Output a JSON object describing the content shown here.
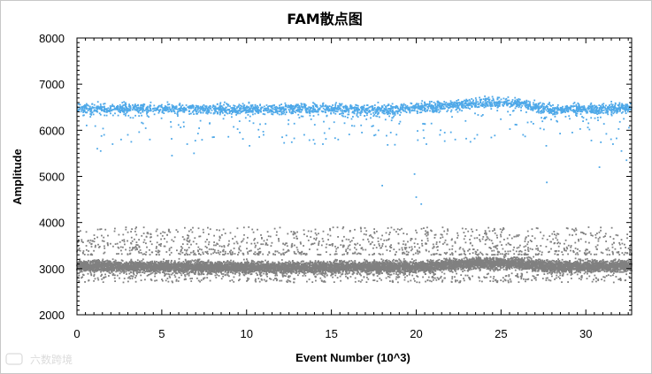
{
  "chart_data": {
    "type": "scatter",
    "title": "FAM散点图",
    "xlabel": "Event Number (10^3)",
    "ylabel": "Amplitude",
    "xlim": [
      0,
      32.7
    ],
    "ylim": [
      2000,
      8000
    ],
    "x_ticks": [
      0,
      5,
      10,
      15,
      20,
      25,
      30
    ],
    "y_ticks": [
      2000,
      3000,
      4000,
      5000,
      6000,
      7000,
      8000
    ],
    "grid": false,
    "legend": "none",
    "series": [
      {
        "color": "#4ea8e8",
        "band_center": [
          [
            0,
            6480
          ],
          [
            3,
            6470
          ],
          [
            7,
            6460
          ],
          [
            10,
            6450
          ],
          [
            14,
            6470
          ],
          [
            18,
            6440
          ],
          [
            21,
            6500
          ],
          [
            24,
            6600
          ],
          [
            26,
            6580
          ],
          [
            28,
            6440
          ],
          [
            32.7,
            6480
          ]
        ],
        "band_halfwidth": 110,
        "outliers": [
          [
            1.2,
            5600
          ],
          [
            1.4,
            5550
          ],
          [
            1.6,
            5900
          ],
          [
            2.1,
            5700
          ],
          [
            2.6,
            5800
          ],
          [
            3.0,
            5900
          ],
          [
            3.2,
            5750
          ],
          [
            4.3,
            5800
          ],
          [
            5.6,
            5450
          ],
          [
            6.5,
            5700
          ],
          [
            6.9,
            5500
          ],
          [
            8.0,
            5850
          ],
          [
            9.6,
            5950
          ],
          [
            11.0,
            5900
          ],
          [
            12.1,
            5850
          ],
          [
            13.4,
            5900
          ],
          [
            14.5,
            5700
          ],
          [
            15.4,
            5800
          ],
          [
            16.8,
            5950
          ],
          [
            17.6,
            5900
          ],
          [
            18.0,
            4800
          ],
          [
            18.5,
            5950
          ],
          [
            19.9,
            5050
          ],
          [
            20.0,
            4550
          ],
          [
            20.3,
            4400
          ],
          [
            20.6,
            5700
          ],
          [
            21.4,
            5900
          ],
          [
            22.3,
            5800
          ],
          [
            23.2,
            5750
          ],
          [
            23.6,
            5900
          ],
          [
            26.3,
            5900
          ],
          [
            27.7,
            4870
          ],
          [
            29.2,
            5950
          ],
          [
            30.8,
            5200
          ],
          [
            31.6,
            5700
          ],
          [
            32.1,
            5550
          ],
          [
            32.4,
            5350
          ]
        ]
      },
      {
        "color": "#808080",
        "band_center": [
          [
            0,
            3060
          ],
          [
            4,
            3040
          ],
          [
            8,
            3030
          ],
          [
            12,
            3020
          ],
          [
            16,
            3030
          ],
          [
            20,
            3040
          ],
          [
            24,
            3120
          ],
          [
            26,
            3110
          ],
          [
            28,
            3040
          ],
          [
            32.7,
            3060
          ]
        ],
        "band_halfwidth": 110,
        "upper_spread": [
          3300,
          3900
        ],
        "lower_spread": [
          2700,
          2900
        ]
      }
    ]
  },
  "watermark": "六数跨境"
}
